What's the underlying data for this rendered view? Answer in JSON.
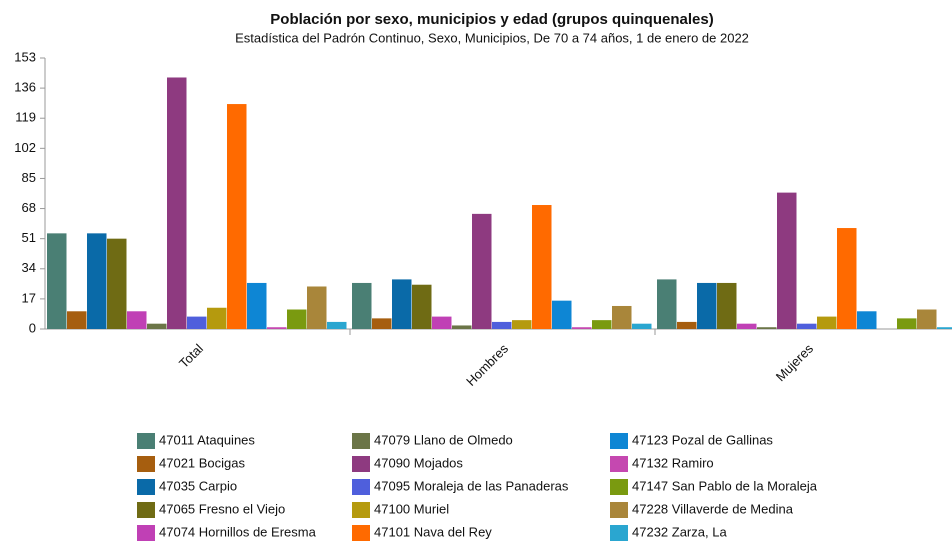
{
  "chart_data": {
    "type": "bar",
    "title": "Población por sexo, municipios y edad (grupos quinquenales)",
    "subtitle": "Estadística del Padrón Continuo, Sexo, Municipios, De 70 a 74 años, 1 de enero de 2022",
    "categories": [
      "Total",
      "Hombres",
      "Mujeres"
    ],
    "ylim": [
      0,
      153
    ],
    "yticks": [
      0,
      17,
      34,
      51,
      68,
      85,
      102,
      119,
      136,
      153
    ],
    "grid": false,
    "legend": "bottom",
    "series": [
      {
        "name": "47011 Ataquines",
        "color": "#4a7f74",
        "values": [
          54,
          26,
          28
        ]
      },
      {
        "name": "47021 Bocigas",
        "color": "#a65e0f",
        "values": [
          10,
          6,
          4
        ]
      },
      {
        "name": "47035 Carpio",
        "color": "#0a6aa8",
        "values": [
          54,
          28,
          26
        ]
      },
      {
        "name": "47065 Fresno el Viejo",
        "color": "#6f6b14",
        "values": [
          51,
          25,
          26
        ]
      },
      {
        "name": "47074 Hornillos de Eresma",
        "color": "#c040b5",
        "values": [
          10,
          7,
          3
        ]
      },
      {
        "name": "47079 Llano de Olmedo",
        "color": "#6b7547",
        "values": [
          3,
          2,
          1
        ]
      },
      {
        "name": "47090 Mojados",
        "color": "#8e3a80",
        "values": [
          142,
          65,
          77
        ]
      },
      {
        "name": "47095 Moraleja de las Panaderas",
        "color": "#4f5fdc",
        "values": [
          7,
          4,
          3
        ]
      },
      {
        "name": "47100 Muriel",
        "color": "#b59a0e",
        "values": [
          12,
          5,
          7
        ]
      },
      {
        "name": "47101 Nava del Rey",
        "color": "#ff6a00",
        "values": [
          127,
          70,
          57
        ]
      },
      {
        "name": "47123 Pozal de Gallinas",
        "color": "#0e86d4",
        "values": [
          26,
          16,
          10
        ]
      },
      {
        "name": "47132 Ramiro",
        "color": "#c548b0",
        "values": [
          1,
          1,
          0
        ]
      },
      {
        "name": "47147 San Pablo de la Moraleja",
        "color": "#7a9a10",
        "values": [
          11,
          5,
          6
        ]
      },
      {
        "name": "47228 Villaverde de Medina",
        "color": "#a9863a",
        "values": [
          24,
          13,
          11
        ]
      },
      {
        "name": "47232 Zarza, La",
        "color": "#2aa6d0",
        "values": [
          4,
          3,
          1
        ]
      }
    ]
  }
}
